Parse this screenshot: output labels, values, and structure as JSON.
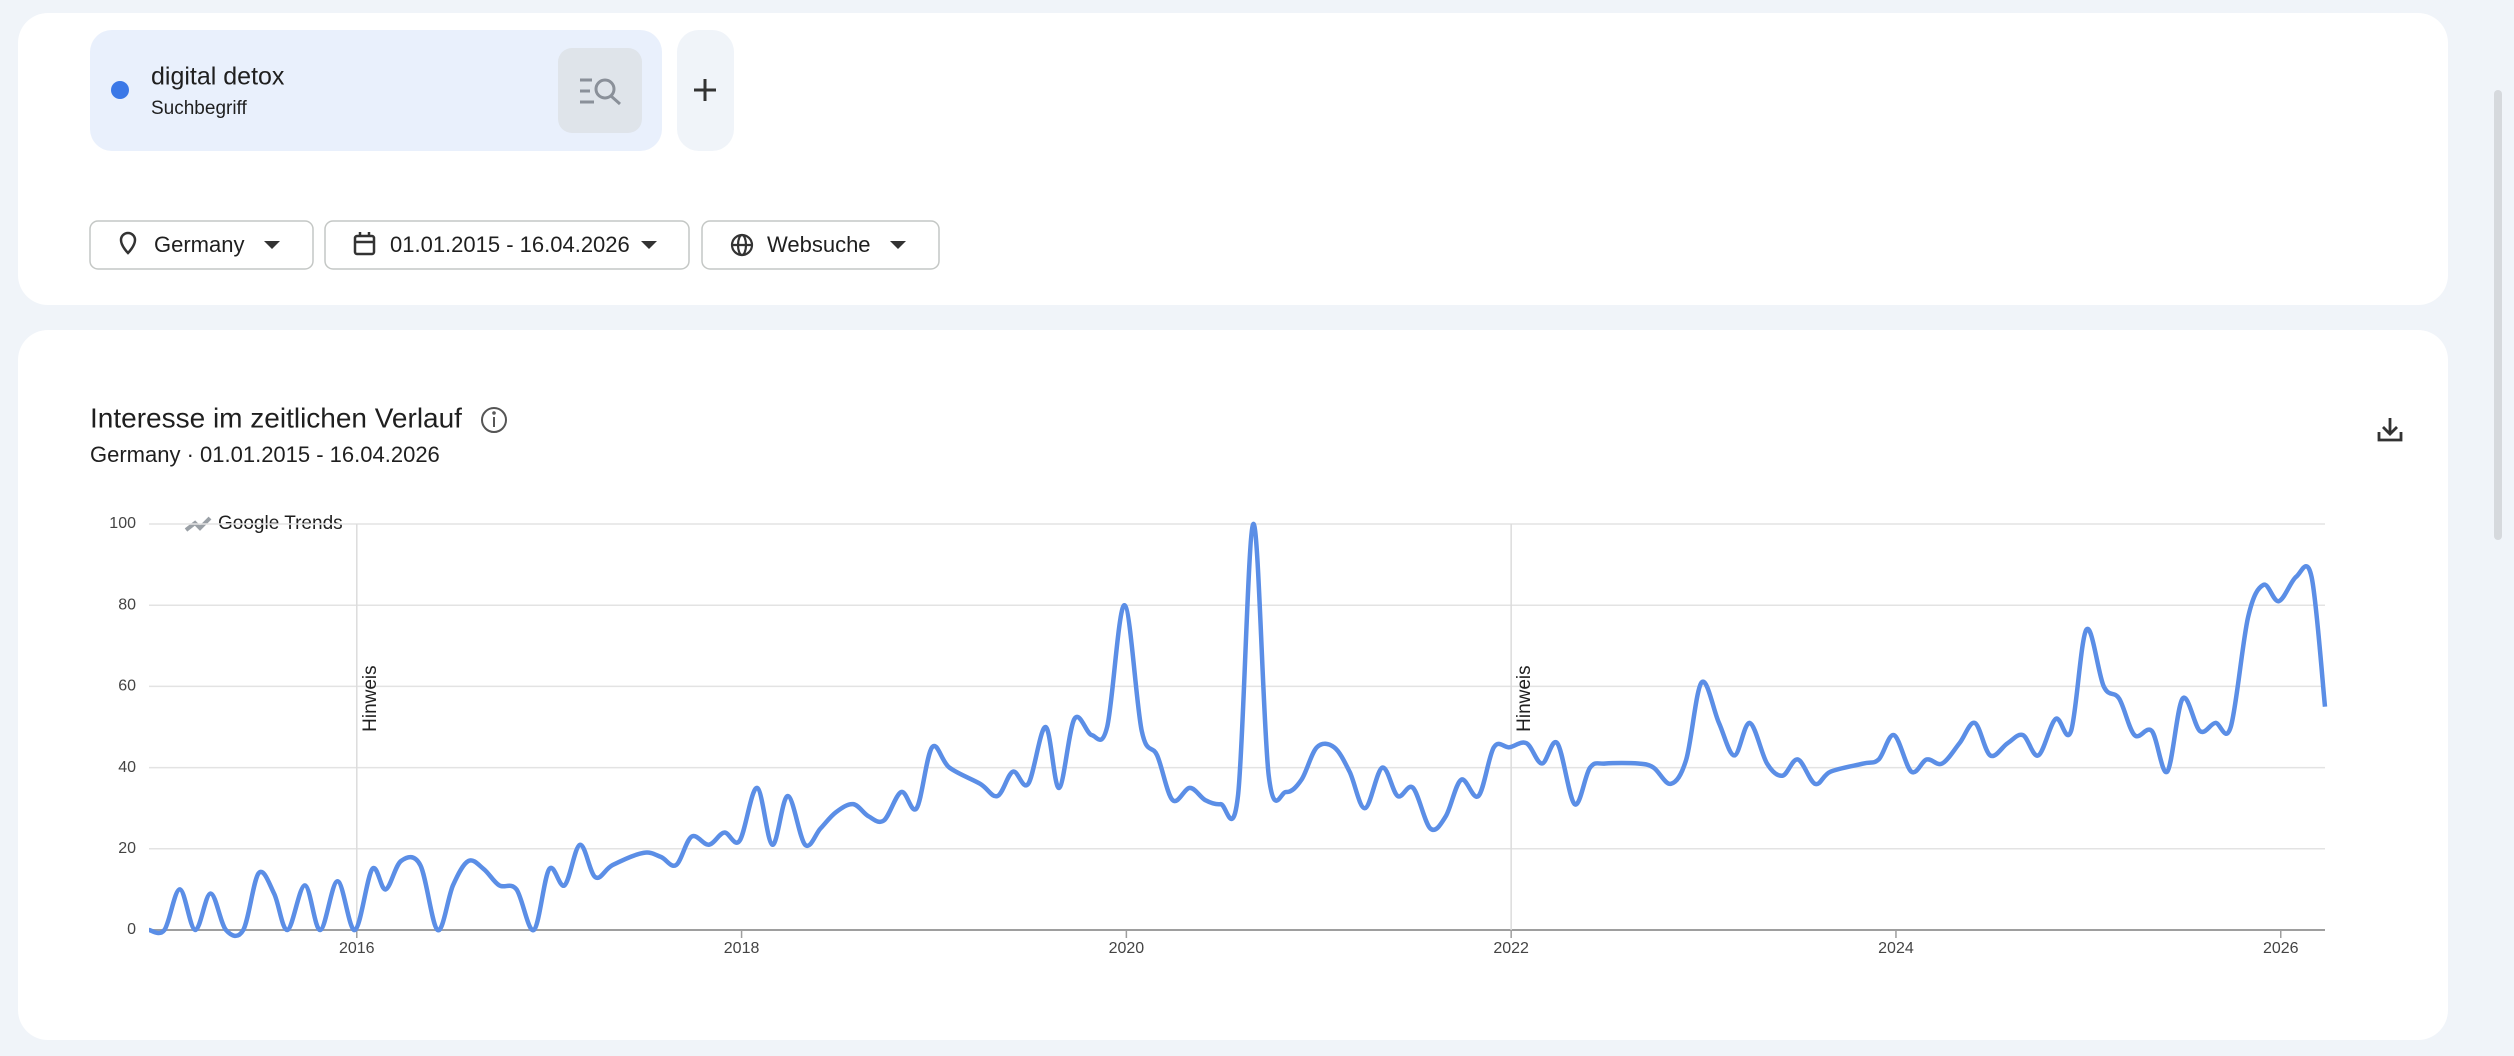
{
  "search": {
    "term": "digital detox",
    "term_type": "Suchbegriff"
  },
  "filters": {
    "region": "Germany",
    "date_range": "01.01.2015 - 16.04.2026",
    "property": "Websuche"
  },
  "chart_data": {
    "type": "line",
    "title": "Interesse im zeitlichen Verlauf",
    "subtitle": "Germany · 01.01.2015 - 16.04.2026",
    "watermark": "Google Trends",
    "annotations": [
      {
        "x": 2016,
        "label": "Hinweis"
      },
      {
        "x": 2022,
        "label": "Hinweis"
      }
    ],
    "x": [
      2014.92,
      2015.0,
      2015.08,
      2015.16,
      2015.24,
      2015.32,
      2015.41,
      2015.49,
      2015.57,
      2015.64,
      2015.73,
      2015.81,
      2015.9,
      2015.99,
      2016.08,
      2016.15,
      2016.23,
      2016.33,
      2016.42,
      2016.5,
      2016.58,
      2016.66,
      2016.74,
      2016.83,
      2016.92,
      2017.0,
      2017.08,
      2017.16,
      2017.24,
      2017.33,
      2017.49,
      2017.58,
      2017.66,
      2017.74,
      2017.83,
      2017.91,
      2017.99,
      2018.08,
      2018.16,
      2018.24,
      2018.33,
      2018.41,
      2018.49,
      2018.58,
      2018.66,
      2018.74,
      2018.83,
      2018.91,
      2018.99,
      2019.08,
      2019.24,
      2019.33,
      2019.41,
      2019.49,
      2019.58,
      2019.65,
      2019.73,
      2019.82,
      2019.9,
      2019.99,
      2020.08,
      2020.16,
      2020.24,
      2020.33,
      2020.41,
      2020.49,
      2020.58,
      2020.66,
      2020.74,
      2020.83,
      2020.91,
      2020.99,
      2021.08,
      2021.16,
      2021.24,
      2021.33,
      2021.41,
      2021.49,
      2021.58,
      2021.66,
      2021.74,
      2021.83,
      2021.91,
      2021.99,
      2022.08,
      2022.16,
      2022.24,
      2022.33,
      2022.41,
      2022.49,
      2022.66,
      2022.74,
      2022.83,
      2022.91,
      2022.99,
      2023.08,
      2023.16,
      2023.24,
      2023.33,
      2023.41,
      2023.49,
      2023.58,
      2023.66,
      2023.83,
      2023.91,
      2023.99,
      2024.08,
      2024.16,
      2024.24,
      2024.33,
      2024.41,
      2024.49,
      2024.58,
      2024.66,
      2024.74,
      2024.83,
      2024.91,
      2024.99,
      2025.08,
      2025.16,
      2025.24,
      2025.33,
      2025.41,
      2025.49,
      2025.58,
      2025.66,
      2025.74,
      2025.83,
      2025.91,
      2025.99,
      2026.08,
      2026.16,
      2026.23
    ],
    "series": [
      {
        "name": "digital detox",
        "color": "#5b8ee6",
        "values": [
          0,
          0,
          10,
          0,
          9,
          0,
          0,
          14,
          9,
          0,
          11,
          0,
          12,
          0,
          15,
          10,
          17,
          16,
          0,
          11,
          17,
          15,
          11,
          10,
          0,
          15,
          11,
          21,
          13,
          16,
          19,
          18,
          16,
          23,
          21,
          24,
          22,
          35,
          21,
          33,
          21,
          25,
          29,
          31,
          28,
          27,
          34,
          30,
          45,
          40,
          36,
          33,
          39,
          36,
          50,
          35,
          52,
          48,
          50,
          80,
          49,
          43,
          32,
          35,
          32,
          31,
          33,
          100,
          38,
          34,
          37,
          45,
          45,
          39,
          30,
          40,
          33,
          35,
          25,
          28,
          37,
          33,
          45,
          45,
          46,
          41,
          46,
          31,
          40,
          41,
          41,
          40,
          36,
          42,
          61,
          51,
          43,
          51,
          41,
          38,
          42,
          36,
          39,
          41,
          42,
          48,
          39,
          42,
          41,
          46,
          51,
          43,
          46,
          48,
          43,
          52,
          49,
          74,
          60,
          57,
          48,
          49,
          39,
          57,
          49,
          51,
          50,
          77,
          85,
          81,
          87,
          87,
          55
        ]
      }
    ],
    "xlim": [
      2014.92,
      2026.23
    ],
    "xticks": [
      2016,
      2018,
      2020,
      2022,
      2024,
      2026
    ],
    "ylim": [
      0,
      100
    ],
    "yticks": [
      0,
      20,
      40,
      60,
      80,
      100
    ],
    "grid": true
  }
}
